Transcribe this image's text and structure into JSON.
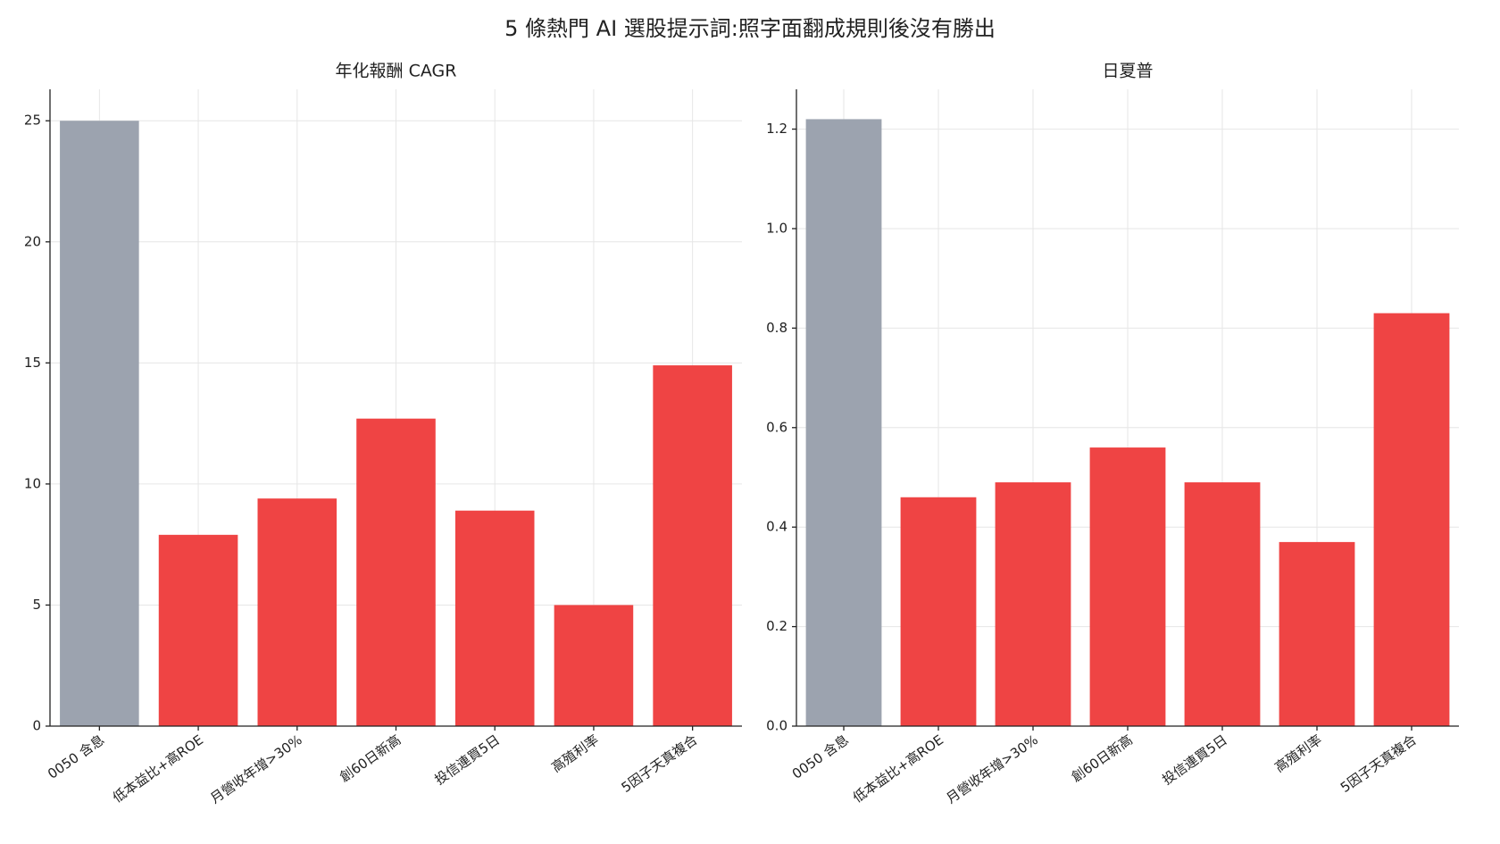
{
  "title": "5 條熱門 AI 選股提示詞:照字面翻成規則後沒有勝出",
  "chart_data": [
    {
      "type": "bar",
      "title": "年化報酬 CAGR",
      "categories": [
        "0050 含息",
        "低本益比+高ROE",
        "月營收年增>30%",
        "創60日新高",
        "投信連買5日",
        "高殖利率",
        "5因子天真複合"
      ],
      "values": [
        25.0,
        7.9,
        9.4,
        12.7,
        8.9,
        5.0,
        14.9
      ],
      "colors": [
        "#9ca3af",
        "#ef4444",
        "#ef4444",
        "#ef4444",
        "#ef4444",
        "#ef4444",
        "#ef4444"
      ],
      "ylim": [
        0,
        26.3
      ],
      "yticks": [
        0,
        5,
        10,
        15,
        20,
        25
      ],
      "grid": true
    },
    {
      "type": "bar",
      "title": "日夏普",
      "categories": [
        "0050 含息",
        "低本益比+高ROE",
        "月營收年增>30%",
        "創60日新高",
        "投信連買5日",
        "高殖利率",
        "5因子天真複合"
      ],
      "values": [
        1.22,
        0.46,
        0.49,
        0.56,
        0.49,
        0.37,
        0.83
      ],
      "colors": [
        "#9ca3af",
        "#ef4444",
        "#ef4444",
        "#ef4444",
        "#ef4444",
        "#ef4444",
        "#ef4444"
      ],
      "ylim": [
        0,
        1.28
      ],
      "yticks": [
        {
          "value": 0,
          "label": "0.0"
        },
        {
          "value": 0.2,
          "label": "0.2"
        },
        {
          "value": 0.4,
          "label": "0.4"
        },
        {
          "value": 0.6,
          "label": "0.6"
        },
        {
          "value": 0.8,
          "label": "0.8"
        },
        {
          "value": 1,
          "label": "1.0"
        },
        {
          "value": 1.2,
          "label": "1.2"
        }
      ],
      "grid": true
    }
  ]
}
